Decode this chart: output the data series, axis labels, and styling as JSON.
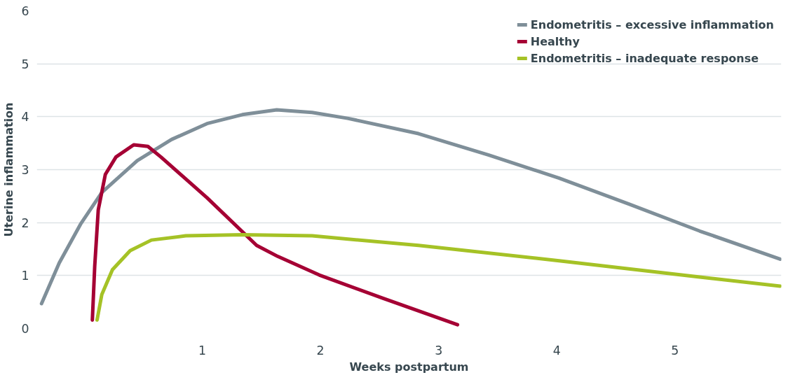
{
  "chart_data": {
    "type": "line",
    "xlabel": "Weeks postpartum",
    "ylabel": "Uterine inflammation",
    "xlim": [
      -0.4,
      5.9
    ],
    "xticks": [
      1,
      2,
      3,
      4,
      5
    ],
    "ylim": [
      0,
      6
    ],
    "yticks": [
      0,
      1,
      2,
      3,
      4,
      5,
      6
    ],
    "grid": "y",
    "legend": "top right",
    "line_style": "solid",
    "marker": "none",
    "series": [
      {
        "name": "Endometritis – excessive inflammation",
        "color": "#7f8f99",
        "x": [
          -0.36,
          -0.21,
          -0.03,
          0.15,
          0.45,
          0.74,
          1.04,
          1.34,
          1.63,
          1.93,
          2.23,
          2.83,
          3.42,
          4.02,
          4.61,
          5.21,
          5.89
        ],
        "values": [
          0.47,
          1.24,
          1.97,
          2.57,
          3.17,
          3.57,
          3.87,
          4.04,
          4.13,
          4.08,
          3.97,
          3.68,
          3.28,
          2.84,
          2.35,
          1.84,
          1.31
        ]
      },
      {
        "name": "Healthy",
        "color": "#a50034",
        "x": [
          0.07,
          0.09,
          0.12,
          0.18,
          0.27,
          0.42,
          0.54,
          0.65,
          1.04,
          1.46,
          1.64,
          1.99,
          2.53,
          3.16
        ],
        "values": [
          0.16,
          1.17,
          2.24,
          2.91,
          3.24,
          3.47,
          3.44,
          3.24,
          2.47,
          1.57,
          1.36,
          1.01,
          0.57,
          0.07
        ]
      },
      {
        "name": "Endometritis – inadequate response",
        "color": "#a5c226",
        "x": [
          0.11,
          0.15,
          0.24,
          0.39,
          0.57,
          0.86,
          1.34,
          1.93,
          2.83,
          4.02,
          5.21,
          5.89
        ],
        "values": [
          0.16,
          0.64,
          1.11,
          1.47,
          1.67,
          1.75,
          1.77,
          1.75,
          1.57,
          1.28,
          0.97,
          0.8
        ]
      }
    ]
  }
}
